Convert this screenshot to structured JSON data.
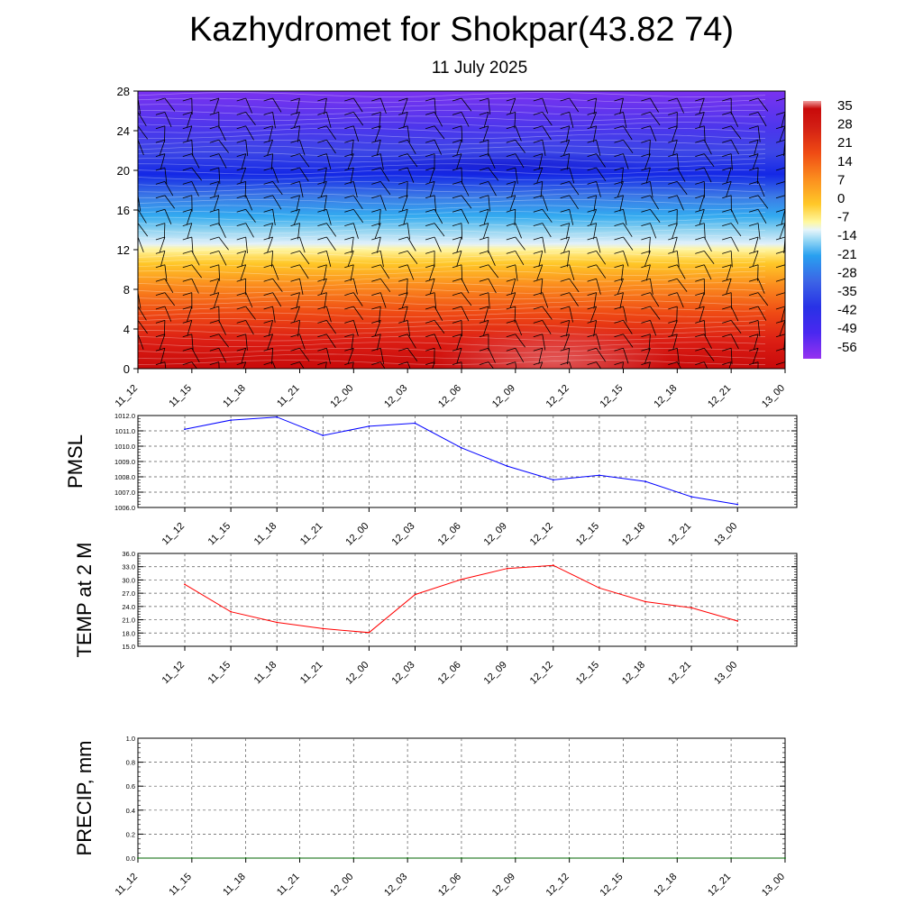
{
  "title": "Kazhydromet for Shokpar(43.82 74)",
  "subtitle": "11 July 2025",
  "time_labels": [
    "11_12",
    "11_15",
    "11_18",
    "11_21",
    "12_00",
    "12_03",
    "12_06",
    "12_09",
    "12_12",
    "12_15",
    "12_18",
    "12_21",
    "13_00"
  ],
  "colors": {
    "pmsl_line": "#0000ff",
    "temp_line": "#ff0000",
    "precip_line": "#006400",
    "grid": "#000000"
  },
  "chart_data": [
    {
      "type": "heatmap",
      "name_id": "temperature-cross-section",
      "x": [
        "11_12",
        "11_15",
        "11_18",
        "11_21",
        "12_00",
        "12_03",
        "12_06",
        "12_09",
        "12_12",
        "12_15",
        "12_18",
        "12_21",
        "13_00"
      ],
      "ylim": [
        0,
        28
      ],
      "yticks": [
        0,
        4,
        8,
        12,
        16,
        20,
        24,
        28
      ],
      "colorbar_labels": [
        "35",
        "28",
        "21",
        "14",
        "7",
        "0",
        "-7",
        "-14",
        "-21",
        "-28",
        "-35",
        "-42",
        "-49",
        "-56"
      ],
      "colorbar_range": [
        -63,
        42
      ],
      "overlay": "wind barbs",
      "grid": false,
      "legend": "right"
    },
    {
      "type": "line",
      "name_id": "pmsl",
      "ylabel": "PMSL",
      "x": [
        "11_12",
        "11_15",
        "11_18",
        "11_21",
        "12_00",
        "12_03",
        "12_06",
        "12_09",
        "12_12",
        "12_15",
        "12_18",
        "12_21",
        "13_00"
      ],
      "values": [
        1011.1,
        1011.7,
        1011.9,
        1010.7,
        1011.3,
        1011.5,
        1009.9,
        1008.7,
        1007.8,
        1008.1,
        1007.7,
        1006.7,
        1006.2
      ],
      "ylim": [
        1006.0,
        1012.0
      ],
      "yticks": [
        "1006.0",
        "1007.0",
        "1008.0",
        "1009.0",
        "1010.0",
        "1011.0",
        "1012.0"
      ],
      "grid": true
    },
    {
      "type": "line",
      "name_id": "temp-2m",
      "ylabel": "TEMP at 2 M",
      "x": [
        "11_12",
        "11_15",
        "11_18",
        "11_21",
        "12_00",
        "12_03",
        "12_06",
        "12_09",
        "12_12",
        "12_15",
        "12_18",
        "12_21",
        "13_00"
      ],
      "values": [
        29.0,
        22.8,
        20.4,
        19.0,
        18.1,
        26.7,
        30.1,
        32.6,
        33.3,
        28.2,
        25.1,
        23.7,
        20.7
      ],
      "ylim": [
        15.0,
        36.0
      ],
      "yticks": [
        "15.0",
        "18.0",
        "21.0",
        "24.0",
        "27.0",
        "30.0",
        "33.0",
        "36.0"
      ],
      "grid": true
    },
    {
      "type": "line",
      "name_id": "precip",
      "ylabel": "PRECIP, mm",
      "x": [
        "11_12",
        "11_15",
        "11_18",
        "11_21",
        "12_00",
        "12_03",
        "12_06",
        "12_09",
        "12_12",
        "12_15",
        "12_18",
        "12_21",
        "13_00"
      ],
      "values": [
        0,
        0,
        0,
        0,
        0,
        0,
        0,
        0,
        0,
        0,
        0,
        0,
        0
      ],
      "ylim": [
        0.0,
        1.0
      ],
      "yticks": [
        "0.0",
        "0.2",
        "0.4",
        "0.6",
        "0.8",
        "1.0"
      ],
      "grid": true
    }
  ]
}
